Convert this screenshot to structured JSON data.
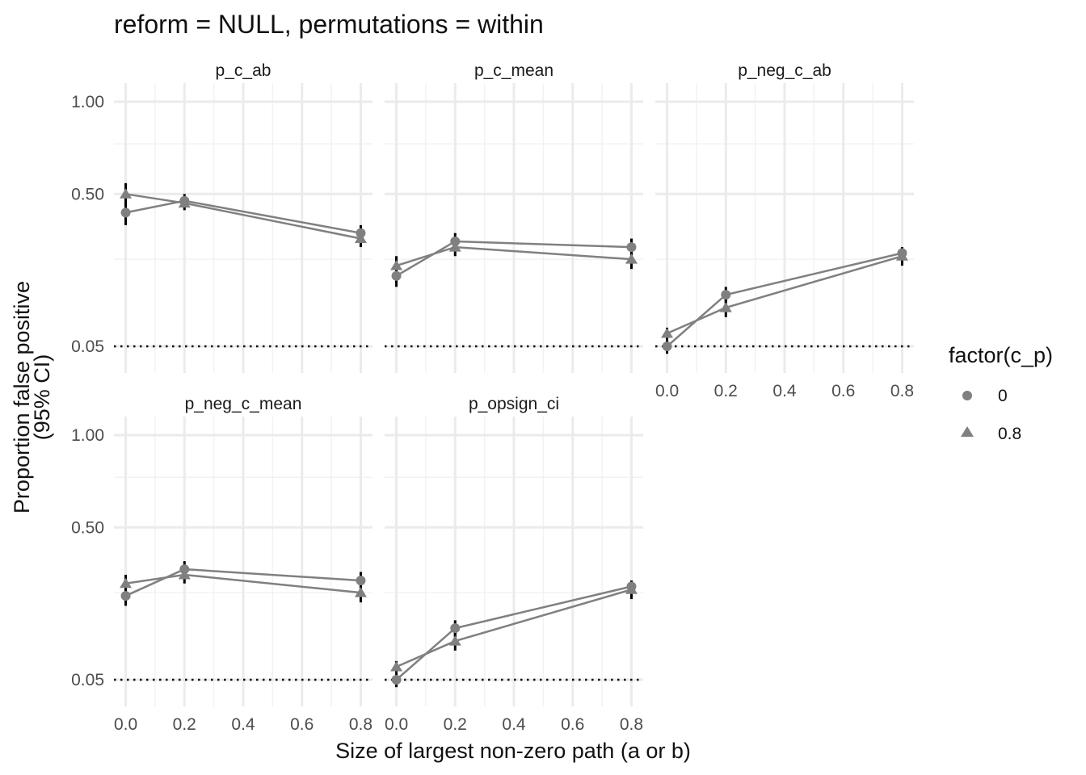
{
  "chart_data": {
    "type": "line",
    "title": "reform = NULL, permutations = within",
    "xlabel": "Size of largest non-zero path (a or b)",
    "ylabel_lines": [
      "Proportion false positive",
      "(95% CI)"
    ],
    "x_ticks": [
      "0.0",
      "0.2",
      "0.4",
      "0.6",
      "0.8"
    ],
    "y_ticks": [
      "0.05",
      "0.50",
      "1.00"
    ],
    "y_scale": "sqrt",
    "reference_line": {
      "y": 0.05,
      "style": "dotted"
    },
    "legend": {
      "title": "factor(c_p)",
      "position": "right",
      "entries": [
        {
          "label": "0",
          "shape": "circle"
        },
        {
          "label": "0.8",
          "shape": "triangle"
        }
      ]
    },
    "series_color": "#808080",
    "errorbar_color": "#000000",
    "panels": [
      {
        "name": "p_c_ab",
        "series": [
          {
            "group": "0",
            "x": [
              0.0,
              0.2,
              0.8
            ],
            "y": [
              0.42,
              0.47,
              0.34
            ],
            "lower": [
              0.37,
              0.44,
              0.31
            ],
            "upper": [
              0.47,
              0.5,
              0.37
            ]
          },
          {
            "group": "0.8",
            "x": [
              0.0,
              0.2,
              0.8
            ],
            "y": [
              0.5,
              0.46,
              0.32
            ],
            "lower": [
              0.45,
              0.43,
              0.29
            ],
            "upper": [
              0.55,
              0.49,
              0.35
            ]
          }
        ]
      },
      {
        "name": "p_c_mean",
        "series": [
          {
            "group": "0",
            "x": [
              0.0,
              0.2,
              0.8
            ],
            "y": [
              0.2,
              0.31,
              0.29
            ],
            "lower": [
              0.17,
              0.28,
              0.26
            ],
            "upper": [
              0.23,
              0.34,
              0.32
            ]
          },
          {
            "group": "0.8",
            "x": [
              0.0,
              0.2,
              0.8
            ],
            "y": [
              0.23,
              0.29,
              0.25
            ],
            "lower": [
              0.2,
              0.26,
              0.22
            ],
            "upper": [
              0.26,
              0.32,
              0.28
            ]
          }
        ]
      },
      {
        "name": "p_neg_c_ab",
        "series": [
          {
            "group": "0",
            "x": [
              0.0,
              0.2,
              0.8
            ],
            "y": [
              0.05,
              0.15,
              0.27
            ],
            "lower": [
              0.04,
              0.13,
              0.25
            ],
            "upper": [
              0.06,
              0.17,
              0.29
            ]
          },
          {
            "group": "0.8",
            "x": [
              0.0,
              0.2,
              0.8
            ],
            "y": [
              0.07,
              0.12,
              0.26
            ],
            "lower": [
              0.06,
              0.1,
              0.23
            ],
            "upper": [
              0.08,
              0.14,
              0.29
            ]
          }
        ]
      },
      {
        "name": "p_neg_c_mean",
        "series": [
          {
            "group": "0",
            "x": [
              0.0,
              0.2,
              0.8
            ],
            "y": [
              0.24,
              0.33,
              0.29
            ],
            "lower": [
              0.21,
              0.3,
              0.26
            ],
            "upper": [
              0.27,
              0.36,
              0.32
            ]
          },
          {
            "group": "0.8",
            "x": [
              0.0,
              0.2,
              0.8
            ],
            "y": [
              0.28,
              0.31,
              0.25
            ],
            "lower": [
              0.25,
              0.28,
              0.22
            ],
            "upper": [
              0.31,
              0.34,
              0.28
            ]
          }
        ]
      },
      {
        "name": "p_opsign_ci",
        "series": [
          {
            "group": "0",
            "x": [
              0.0,
              0.2,
              0.8
            ],
            "y": [
              0.05,
              0.15,
              0.27
            ],
            "lower": [
              0.04,
              0.13,
              0.25
            ],
            "upper": [
              0.06,
              0.17,
              0.29
            ]
          },
          {
            "group": "0.8",
            "x": [
              0.0,
              0.2,
              0.8
            ],
            "y": [
              0.07,
              0.12,
              0.26
            ],
            "lower": [
              0.06,
              0.1,
              0.23
            ],
            "upper": [
              0.08,
              0.14,
              0.29
            ]
          }
        ]
      }
    ]
  }
}
